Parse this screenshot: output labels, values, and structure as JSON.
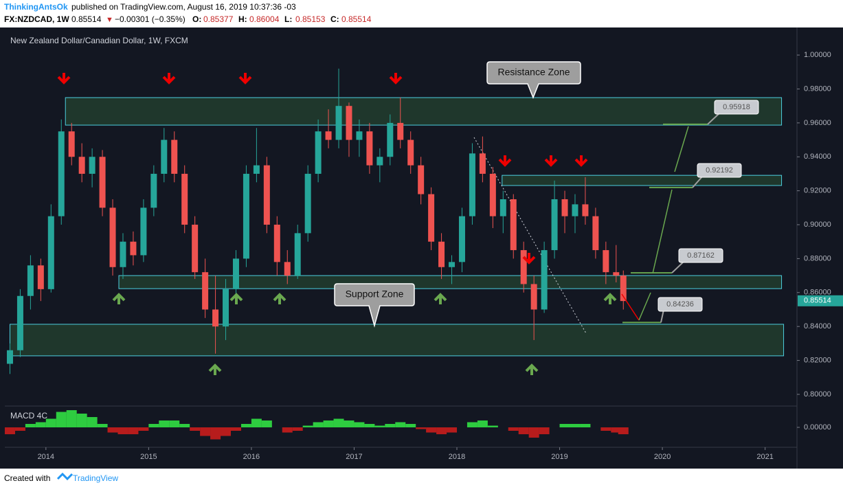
{
  "header": {
    "author": "ThinkingAntsOk",
    "published": "published on TradingView.com, August 16, 2019 10:37:36 -03",
    "symbol": "FX:NZDCAD, 1W",
    "last": 0.85514,
    "direction": "▼",
    "change": "−0.00301 (−0.35%)",
    "ohlc": [
      {
        "label": "O:",
        "value": 0.85377
      },
      {
        "label": "H:",
        "value": 0.86004
      },
      {
        "label": "L:",
        "value": 0.85153
      },
      {
        "label": "C:",
        "value": 0.85514
      }
    ]
  },
  "footer": {
    "created": "Created with",
    "brand": "TradingView"
  },
  "chart_data": {
    "type": "candlestick",
    "title": "New Zealand Dollar/Canadian Dollar, 1W, FXCM",
    "last_price": 0.85514,
    "xlim": [
      2013.6,
      2021.31
    ],
    "xticks": [
      2014,
      2015,
      2016,
      2017,
      2018,
      2019,
      2020,
      2021
    ],
    "ylim": [
      0.7935,
      1.013
    ],
    "yticks": [
      {
        "value": 0.8,
        "label": "0.80000"
      },
      {
        "value": 0.82,
        "label": "0.82000"
      },
      {
        "value": 0.84,
        "label": "0.84000"
      },
      {
        "value": 0.86,
        "label": "0.86000"
      },
      {
        "value": 0.88,
        "label": "0.88000"
      },
      {
        "value": 0.9,
        "label": "0.90000"
      },
      {
        "value": 0.92,
        "label": "0.92000"
      },
      {
        "value": 0.94,
        "label": "0.94000"
      },
      {
        "value": 0.96,
        "label": "0.96000"
      },
      {
        "value": 0.98,
        "label": "0.98000"
      },
      {
        "value": 1.0,
        "label": "1.00000"
      }
    ],
    "up_color": "#26a69a",
    "down_color": "#ef5350",
    "x": [
      2013.65,
      2013.75,
      2013.85,
      2013.95,
      2014.05,
      2014.15,
      2014.25,
      2014.35,
      2014.45,
      2014.55,
      2014.65,
      2014.75,
      2014.85,
      2014.95,
      2015.05,
      2015.15,
      2015.25,
      2015.35,
      2015.45,
      2015.55,
      2015.65,
      2015.75,
      2015.85,
      2015.95,
      2016.05,
      2016.15,
      2016.25,
      2016.35,
      2016.45,
      2016.55,
      2016.65,
      2016.75,
      2016.85,
      2016.95,
      2017.05,
      2017.15,
      2017.25,
      2017.35,
      2017.45,
      2017.55,
      2017.65,
      2017.75,
      2017.85,
      2017.95,
      2018.05,
      2018.15,
      2018.25,
      2018.35,
      2018.45,
      2018.55,
      2018.65,
      2018.75,
      2018.85,
      2018.95,
      2019.05,
      2019.15,
      2019.25,
      2019.35,
      2019.45,
      2019.55,
      2019.62
    ],
    "open": [
      0.818,
      0.826,
      0.858,
      0.876,
      0.862,
      0.905,
      0.955,
      0.94,
      0.93,
      0.94,
      0.91,
      0.875,
      0.89,
      0.882,
      0.91,
      0.93,
      0.95,
      0.93,
      0.9,
      0.872,
      0.85,
      0.84,
      0.862,
      0.88,
      0.93,
      0.935,
      0.9,
      0.878,
      0.87,
      0.895,
      0.93,
      0.955,
      0.95,
      0.97,
      0.95,
      0.955,
      0.935,
      0.94,
      0.96,
      0.95,
      0.935,
      0.918,
      0.89,
      0.875,
      0.878,
      0.905,
      0.942,
      0.93,
      0.905,
      0.915,
      0.885,
      0.865,
      0.85,
      0.885,
      0.915,
      0.905,
      0.912,
      0.905,
      0.885,
      0.872,
      0.87
    ],
    "high": [
      0.83,
      0.862,
      0.882,
      0.88,
      0.912,
      0.962,
      0.96,
      0.948,
      0.945,
      0.944,
      0.915,
      0.895,
      0.896,
      0.915,
      0.935,
      0.957,
      0.955,
      0.935,
      0.905,
      0.88,
      0.87,
      0.868,
      0.885,
      0.935,
      0.957,
      0.94,
      0.905,
      0.885,
      0.9,
      0.935,
      0.962,
      0.968,
      0.992,
      0.972,
      0.962,
      0.96,
      0.945,
      0.965,
      0.975,
      0.955,
      0.94,
      0.922,
      0.895,
      0.882,
      0.91,
      0.948,
      0.952,
      0.934,
      0.92,
      0.918,
      0.89,
      0.87,
      0.89,
      0.926,
      0.92,
      0.918,
      0.928,
      0.91,
      0.89,
      0.888,
      0.873
    ],
    "low": [
      0.812,
      0.822,
      0.85,
      0.855,
      0.86,
      0.9,
      0.935,
      0.925,
      0.922,
      0.905,
      0.87,
      0.868,
      0.876,
      0.878,
      0.905,
      0.925,
      0.925,
      0.895,
      0.868,
      0.845,
      0.824,
      0.832,
      0.856,
      0.875,
      0.925,
      0.895,
      0.87,
      0.865,
      0.868,
      0.89,
      0.925,
      0.945,
      0.945,
      0.94,
      0.94,
      0.93,
      0.925,
      0.935,
      0.945,
      0.93,
      0.912,
      0.885,
      0.868,
      0.865,
      0.872,
      0.9,
      0.925,
      0.898,
      0.895,
      0.88,
      0.86,
      0.832,
      0.848,
      0.88,
      0.895,
      0.895,
      0.9,
      0.88,
      0.865,
      0.866,
      0.85
    ],
    "close": [
      0.826,
      0.858,
      0.876,
      0.862,
      0.905,
      0.955,
      0.94,
      0.93,
      0.94,
      0.91,
      0.875,
      0.89,
      0.882,
      0.91,
      0.93,
      0.95,
      0.93,
      0.9,
      0.872,
      0.85,
      0.84,
      0.862,
      0.88,
      0.93,
      0.935,
      0.9,
      0.878,
      0.87,
      0.895,
      0.93,
      0.955,
      0.95,
      0.97,
      0.95,
      0.955,
      0.935,
      0.94,
      0.96,
      0.95,
      0.935,
      0.918,
      0.89,
      0.875,
      0.878,
      0.905,
      0.942,
      0.93,
      0.905,
      0.915,
      0.885,
      0.865,
      0.85,
      0.885,
      0.915,
      0.905,
      0.912,
      0.905,
      0.885,
      0.872,
      0.87,
      0.855
    ],
    "macd": {
      "name": "MACD 4C",
      "ylim": [
        -0.012,
        0.012
      ],
      "yticks": [
        {
          "value": 0,
          "label": "0.00000"
        }
      ],
      "pos_color": "#2ecc40",
      "neg_color": "#b71c1c",
      "values": [
        -0.004,
        -0.002,
        0.002,
        0.003,
        0.005,
        0.009,
        0.01,
        0.008,
        0.006,
        0.002,
        -0.003,
        -0.004,
        -0.004,
        -0.002,
        0.002,
        0.004,
        0.004,
        0.002,
        -0.002,
        -0.005,
        -0.007,
        -0.005,
        -0.002,
        0.002,
        0.005,
        0.004,
        0,
        -0.003,
        -0.002,
        0.001,
        0.003,
        0.004,
        0.005,
        0.004,
        0.003,
        0.002,
        0.001,
        0.002,
        0.003,
        0.002,
        -0.001,
        -0.003,
        -0.004,
        -0.003,
        0,
        0.003,
        0.004,
        0.001,
        0,
        -0.002,
        -0.004,
        -0.006,
        -0.004,
        0,
        0.002,
        0.002,
        0.002,
        0,
        -0.002,
        -0.003,
        -0.004
      ]
    },
    "zone_color": "#4dd0e1",
    "zones": [
      {
        "x": [
          2014.19,
          2021.16
        ],
        "y": [
          0.9587,
          0.9749
        ]
      },
      {
        "x": [
          2018.44,
          2021.16
        ],
        "y": [
          0.9231,
          0.9291
        ]
      },
      {
        "x": [
          2014.71,
          2021.16
        ],
        "y": [
          0.8623,
          0.87
        ]
      },
      {
        "x": [
          2013.65,
          2021.18
        ],
        "y": [
          0.8227,
          0.8413
        ]
      }
    ],
    "callouts": [
      "Resistance Zone",
      "Support Zone"
    ],
    "price_labels": [
      0.95918,
      0.92192,
      0.87162,
      0.84236
    ]
  }
}
